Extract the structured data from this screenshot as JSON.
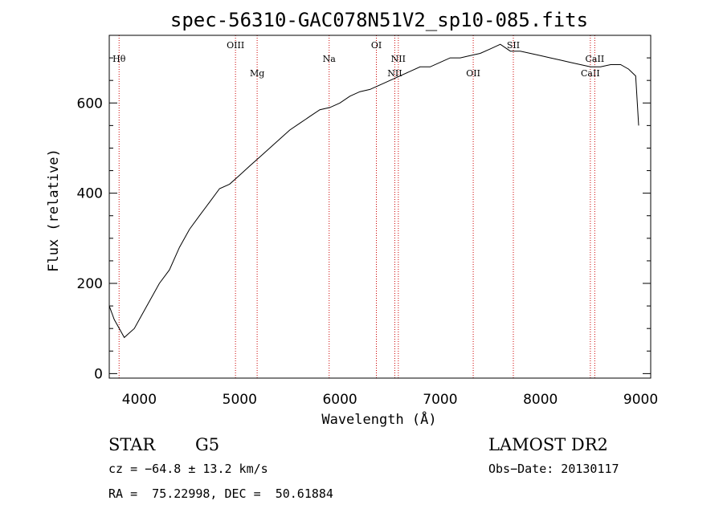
{
  "chart_data": {
    "type": "line",
    "title": "spec-56310-GAC078N51V2_sp10-085.fits",
    "xlabel": "Wavelength (Å)",
    "ylabel": "Flux (relative)",
    "xlim": [
      3700,
      9100
    ],
    "ylim": [
      -10,
      750
    ],
    "x_ticks": [
      4000,
      5000,
      6000,
      7000,
      8000,
      9000
    ],
    "y_ticks": [
      0,
      200,
      400,
      600
    ],
    "grid": false,
    "spectrum_color": "#000000",
    "line_color": "#cc0000",
    "series": [
      {
        "x": [
          3700,
          3750,
          3800,
          3850,
          3900,
          3950,
          4000,
          4100,
          4200,
          4300,
          4400,
          4500,
          4600,
          4700,
          4800,
          4900,
          5000,
          5100,
          5200,
          5300,
          5400,
          5500,
          5600,
          5700,
          5800,
          5900,
          6000,
          6100,
          6200,
          6300,
          6400,
          6500,
          6600,
          6700,
          6800,
          6900,
          7000,
          7100,
          7200,
          7300,
          7400,
          7500,
          7600,
          7700,
          7800,
          7900,
          8000,
          8100,
          8200,
          8300,
          8400,
          8500,
          8600,
          8700,
          8800,
          8880,
          8950,
          8980
        ],
        "y": [
          150,
          120,
          100,
          80,
          90,
          100,
          120,
          160,
          200,
          230,
          280,
          320,
          350,
          380,
          410,
          420,
          440,
          460,
          480,
          500,
          520,
          540,
          555,
          570,
          585,
          590,
          600,
          615,
          625,
          630,
          640,
          650,
          660,
          670,
          680,
          680,
          690,
          700,
          700,
          705,
          710,
          720,
          730,
          715,
          715,
          710,
          705,
          700,
          695,
          690,
          685,
          680,
          680,
          685,
          685,
          675,
          660,
          550
        ]
      }
    ],
    "spectral_lines": [
      {
        "label": "Hθ",
        "x": 3798,
        "label_row": 1
      },
      {
        "label": "OIII",
        "x": 4959,
        "label_row": 0
      },
      {
        "label": "Mg",
        "x": 5175,
        "label_row": 2
      },
      {
        "label": "Na",
        "x": 5893,
        "label_row": 1
      },
      {
        "label": "OI",
        "x": 6364,
        "label_row": 0
      },
      {
        "label": "NII",
        "x": 6548,
        "label_row": 2
      },
      {
        "label": "NII",
        "x": 6583,
        "label_row": 1
      },
      {
        "label": "OII",
        "x": 7330,
        "label_row": 2
      },
      {
        "label": "SII",
        "x": 7730,
        "label_row": 0
      },
      {
        "label": "CaII",
        "x": 8498,
        "label_row": 2
      },
      {
        "label": "CaII",
        "x": 8542,
        "label_row": 1
      }
    ]
  },
  "info": {
    "object_type": "STAR",
    "subclass": "G5",
    "survey": "LAMOST DR2",
    "cz": "cz = −64.8 ± 13.2 km/s",
    "obs_date": "Obs−Date: 20130117",
    "coords": "RA =  75.22998, DEC =  50.61884"
  }
}
